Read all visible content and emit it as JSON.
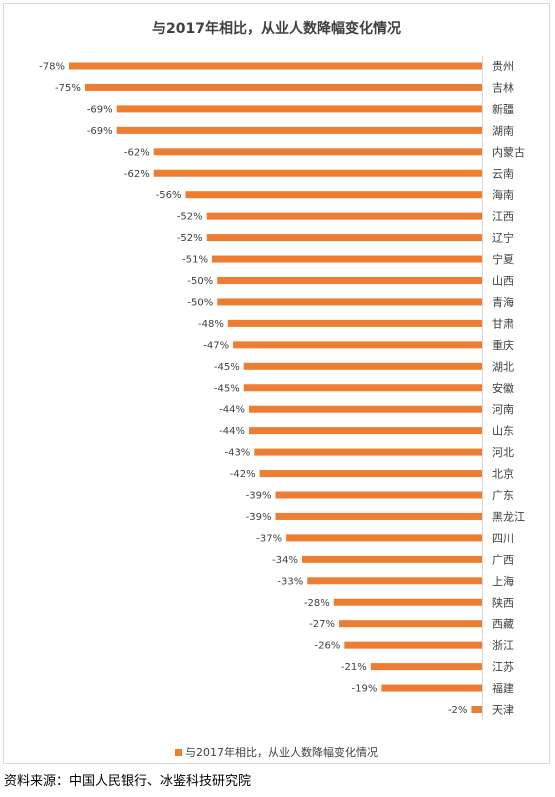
{
  "chart_data": {
    "type": "bar",
    "orientation": "horizontal",
    "title": "与2017年相比，从业人数降幅变化情况",
    "legend": {
      "label": "与2017年相比，从业人数降幅变化情况",
      "placement": "bottom",
      "color": "#ed7d31"
    },
    "grid": false,
    "categories": [
      "贵州",
      "吉林",
      "新疆",
      "湖南",
      "内蒙古",
      "云南",
      "海南",
      "江西",
      "辽宁",
      "宁夏",
      "山西",
      "青海",
      "甘肃",
      "重庆",
      "湖北",
      "安徽",
      "河南",
      "山东",
      "河北",
      "北京",
      "广东",
      "黑龙江",
      "四川",
      "广西",
      "上海",
      "陕西",
      "西藏",
      "浙江",
      "江苏",
      "福建",
      "天津"
    ],
    "values": [
      -78,
      -75,
      -69,
      -69,
      -62,
      -62,
      -56,
      -52,
      -52,
      -51,
      -50,
      -50,
      -48,
      -47,
      -45,
      -45,
      -44,
      -44,
      -43,
      -42,
      -39,
      -39,
      -37,
      -34,
      -33,
      -28,
      -27,
      -26,
      -21,
      -19,
      -2
    ],
    "value_labels": [
      "-78%",
      "-75%",
      "-69%",
      "-69%",
      "-62%",
      "-62%",
      "-56%",
      "-52%",
      "-52%",
      "-51%",
      "-50%",
      "-50%",
      "-48%",
      "-47%",
      "-45%",
      "-45%",
      "-44%",
      "-44%",
      "-43%",
      "-42%",
      "-39%",
      "-39%",
      "-37%",
      "-34%",
      "-33%",
      "-28%",
      "-27%",
      "-26%",
      "-21%",
      "-19%",
      "-2%"
    ],
    "xlim": [
      -78,
      0
    ],
    "bar_color": "#ed7d31"
  },
  "source": "资料来源：中国人民银行、冰鉴科技研究院"
}
